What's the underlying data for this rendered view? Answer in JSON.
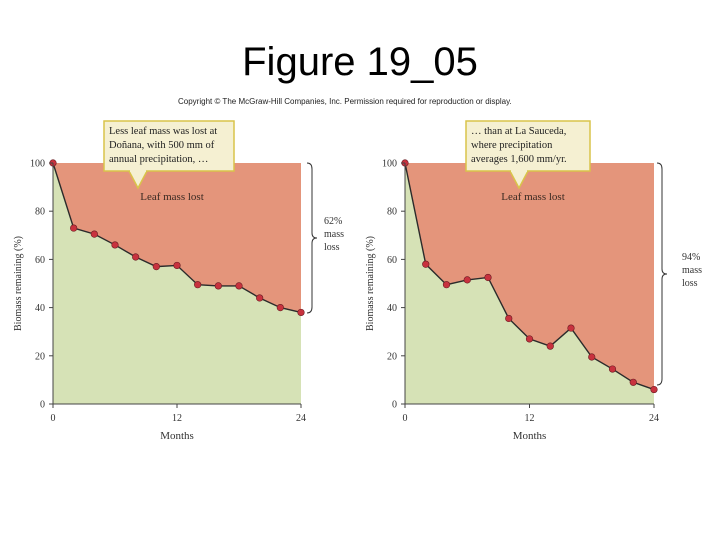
{
  "title": "Figure 19_05",
  "copyright": "Copyright © The McGraw-Hill Companies, Inc. Permission required for reproduction or display.",
  "colors": {
    "lost": "#e4957b",
    "remaining": "#d6e2b6",
    "line": "#2b2b2b",
    "marker": "#c8323e",
    "callout": "#f5f0d2",
    "callout_border": "#d9c44a"
  },
  "chart_data": [
    {
      "type": "area",
      "xlabel": "Months",
      "ylabel": "Biomass remaining (%)",
      "xlim": [
        0,
        24
      ],
      "ylim": [
        0,
        100
      ],
      "xticks": [
        "0",
        "12",
        "24"
      ],
      "yticks": [
        "0",
        "20",
        "40",
        "60",
        "80",
        "100"
      ],
      "x": [
        0,
        2,
        4,
        6,
        8,
        10,
        12,
        14,
        16,
        18,
        20,
        22,
        24
      ],
      "values": [
        100,
        73,
        70.5,
        66,
        61,
        57,
        57.5,
        49.5,
        49,
        49,
        44,
        40,
        38
      ],
      "region_label": "Leaf mass lost",
      "callout_lines": [
        "Less leaf mass was lost at",
        "Doñana, with 500 mm of",
        "annual precipitation, …"
      ],
      "bracket_lines": [
        "62%",
        "mass",
        "loss"
      ]
    },
    {
      "type": "area",
      "xlabel": "Months",
      "ylabel": "Biomass remaining (%)",
      "xlim": [
        0,
        24
      ],
      "ylim": [
        0,
        100
      ],
      "xticks": [
        "0",
        "12",
        "24"
      ],
      "yticks": [
        "0",
        "20",
        "40",
        "60",
        "80",
        "100"
      ],
      "x": [
        0,
        2,
        4,
        6,
        8,
        10,
        12,
        14,
        16,
        18,
        20,
        22,
        24
      ],
      "values": [
        100,
        58,
        49.5,
        51.5,
        52.5,
        35.5,
        27,
        24,
        31.5,
        19.5,
        14.5,
        9,
        6
      ],
      "region_label": "Leaf mass lost",
      "callout_lines": [
        "… than at La Sauceda,",
        "where precipitation",
        "averages 1,600 mm/yr."
      ],
      "bracket_lines": [
        "94%",
        "mass",
        "loss"
      ]
    }
  ]
}
